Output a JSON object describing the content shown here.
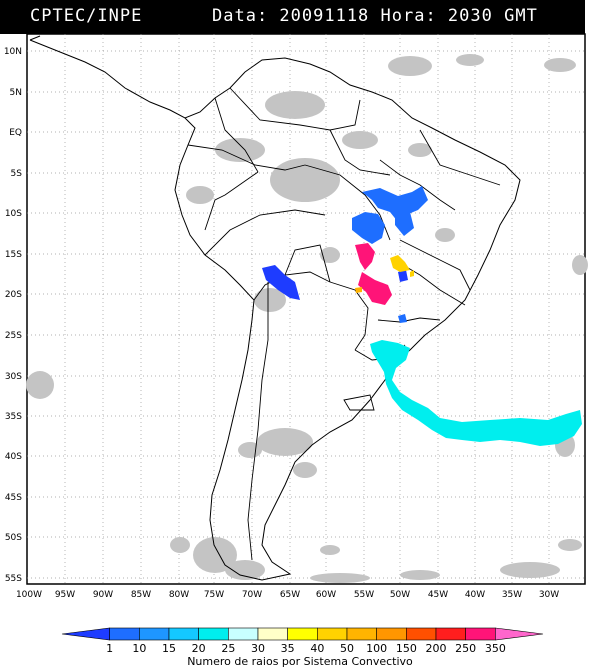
{
  "header": {
    "left": "CPTEC/INPE",
    "right": "Data: 20091118 Hora: 2030 GMT"
  },
  "axes": {
    "y_labels": [
      "10N",
      "5N",
      "EQ",
      "5S",
      "10S",
      "15S",
      "20S",
      "25S",
      "30S",
      "35S",
      "40S",
      "45S",
      "50S",
      "55S"
    ],
    "x_labels": [
      "100W",
      "95W",
      "90W",
      "85W",
      "80W",
      "75W",
      "70W",
      "65W",
      "60W",
      "55W",
      "50W",
      "45W",
      "40W",
      "35W",
      "30W"
    ]
  },
  "legend": {
    "caption": "Numero de raios por Sistema Convectivo",
    "ticks": [
      "1",
      "10",
      "15",
      "20",
      "25",
      "30",
      "35",
      "40",
      "50",
      "100",
      "150",
      "200",
      "250",
      "350"
    ],
    "colors": [
      "#1e3cff",
      "#1e6eff",
      "#1e96ff",
      "#14c8ff",
      "#00eeee",
      "#c8ffff",
      "#ffffc8",
      "#ffff00",
      "#ffd200",
      "#ffb400",
      "#ff9600",
      "#ff5000",
      "#ff1e1e",
      "#ff1478",
      "#ff66cc"
    ]
  },
  "icons": [
    "lightning-cluster-icon"
  ]
}
